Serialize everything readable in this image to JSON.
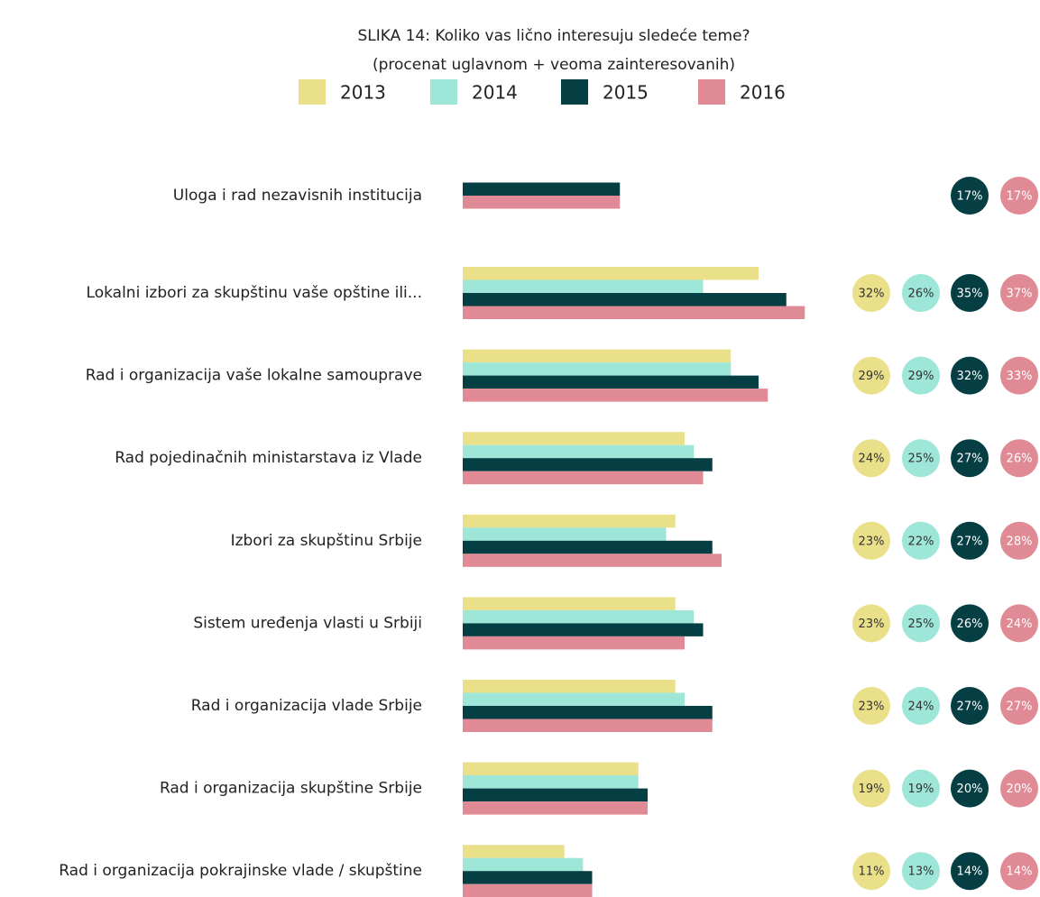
{
  "chart_data": {
    "type": "hbar",
    "title": "SLIKA 14: Koliko vas lično interesuju sledeće teme?",
    "subtitle": "(procenat uglavnom + veoma zainteresovanih)",
    "categories": [
      "Uloga i rad nezavisnih institucija",
      "Lokalni izbori za skupštinu vaše opštine ili...",
      "Rad i organizacija vaše lokalne samouprave",
      "Rad pojedinačnih ministarstava iz Vlade",
      "Izbori za skupštinu Srbije",
      "Sistem uređenja vlasti u Srbiji",
      "Rad i organizacija vlade Srbije",
      "Rad i organizacija skupštine Srbije",
      "Rad i organizacija pokrajinske vlade / skupštine"
    ],
    "series": [
      {
        "name": "2013",
        "color": "#ebe08a",
        "values": [
          null,
          32,
          29,
          24,
          23,
          23,
          23,
          19,
          11
        ],
        "value_labels": [
          null,
          "32%",
          "29%",
          "24%",
          "23%",
          "23%",
          "23%",
          "19%",
          "11%"
        ]
      },
      {
        "name": "2014",
        "color": "#9de6d8",
        "values": [
          null,
          26,
          29,
          25,
          22,
          25,
          24,
          19,
          13
        ],
        "value_labels": [
          null,
          "26%",
          "29%",
          "25%",
          "22%",
          "25%",
          "24%",
          "19%",
          "13%"
        ]
      },
      {
        "name": "2015",
        "color": "#063f43",
        "values": [
          17,
          35,
          32,
          27,
          27,
          26,
          27,
          20,
          14
        ],
        "value_labels": [
          "17%",
          "35%",
          "32%",
          "27%",
          "27%",
          "26%",
          "27%",
          "20%",
          "14%"
        ]
      },
      {
        "name": "2016",
        "color": "#e08a96",
        "values": [
          17,
          37,
          33,
          26,
          28,
          24,
          27,
          20,
          14
        ],
        "value_labels": [
          "17%",
          "37%",
          "33%",
          "26%",
          "28%",
          "24%",
          "27%",
          "20%",
          "14%"
        ]
      }
    ]
  }
}
